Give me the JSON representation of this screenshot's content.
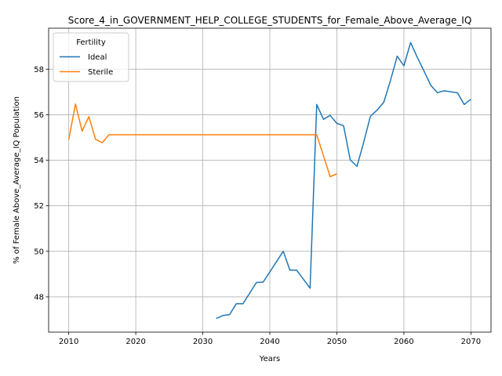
{
  "chart_data": {
    "type": "line",
    "title": "Score_4_in_GOVERNMENT_HELP_COLLEGE_STUDENTS_for_Female_Above_Average_IQ",
    "xlabel": "Years",
    "ylabel": "% of Female Above_Average_IQ Population",
    "xlim": [
      2007,
      2073
    ],
    "ylim": [
      46.45,
      59.8
    ],
    "x_ticks": [
      2010,
      2020,
      2030,
      2040,
      2050,
      2060,
      2070
    ],
    "y_ticks": [
      48,
      50,
      52,
      54,
      56,
      58
    ],
    "grid": true,
    "legend": {
      "title": "Fertility",
      "placement": "top-left"
    },
    "series": [
      {
        "name": "Ideal",
        "color": "#1f77b4",
        "x": [
          2032,
          2033,
          2034,
          2035,
          2036,
          2038,
          2039,
          2042,
          2043,
          2044,
          2046,
          2047,
          2048,
          2049,
          2050,
          2051,
          2052,
          2053,
          2054,
          2055,
          2056,
          2057,
          2058,
          2059,
          2060,
          2061,
          2062,
          2063,
          2064,
          2065,
          2066,
          2068,
          2069,
          2070
        ],
        "y": [
          47.05,
          47.18,
          47.22,
          47.7,
          47.7,
          48.63,
          48.65,
          50.0,
          49.17,
          49.17,
          48.38,
          56.45,
          55.8,
          55.97,
          55.62,
          55.52,
          54.02,
          53.73,
          54.78,
          55.93,
          56.2,
          56.55,
          57.5,
          58.57,
          58.15,
          59.17,
          58.52,
          57.92,
          57.3,
          56.97,
          57.05,
          56.96,
          56.45,
          56.68
        ]
      },
      {
        "name": "Sterile",
        "color": "#ff7f0e",
        "x": [
          2010,
          2011,
          2012,
          2013,
          2014,
          2015,
          2016,
          2047,
          2048,
          2049,
          2050
        ],
        "y": [
          54.9,
          56.47,
          55.28,
          55.92,
          54.92,
          54.77,
          55.12,
          55.12,
          54.2,
          53.28,
          53.4
        ]
      }
    ]
  }
}
